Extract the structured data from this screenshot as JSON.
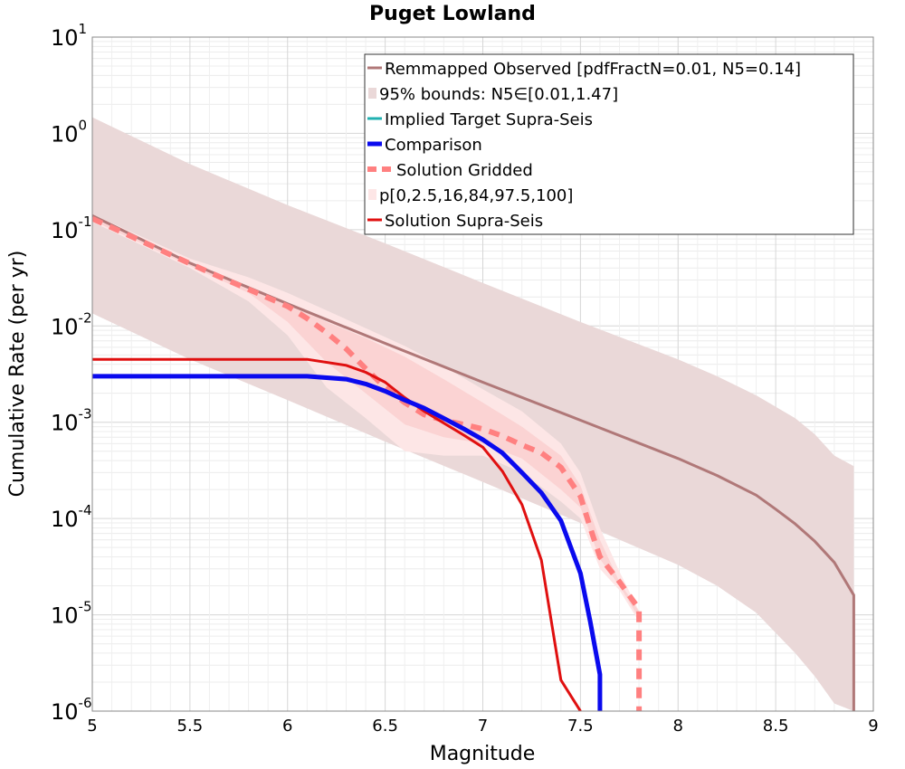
{
  "chart_data": {
    "type": "line",
    "title": "Puget Lowland",
    "xlabel": "Magnitude",
    "ylabel": "Cumulative Rate (per yr)",
    "xlim": [
      5,
      9
    ],
    "ylim": [
      1e-06,
      10
    ],
    "yscale": "log",
    "grid": true,
    "legend_position": "top-right",
    "x_ticks": [
      "5",
      "5.5",
      "6",
      "6.5",
      "7",
      "7.5",
      "8",
      "8.5",
      "9"
    ],
    "y_ticks": [
      {
        "base": "10",
        "exp": "1"
      },
      {
        "base": "10",
        "exp": "0"
      },
      {
        "base": "10",
        "exp": "-1"
      },
      {
        "base": "10",
        "exp": "-2"
      },
      {
        "base": "10",
        "exp": "-3"
      },
      {
        "base": "10",
        "exp": "-4"
      },
      {
        "base": "10",
        "exp": "-5"
      },
      {
        "base": "10",
        "exp": "-6"
      }
    ],
    "legend": [
      {
        "label": "Remmapped Observed [pdfFractN=0.01, N5=0.14]",
        "color": "#b07878",
        "style": "line"
      },
      {
        "label": "95% bounds: N5∈[0.01,1.47]",
        "color": "#ead8d8",
        "style": "patch"
      },
      {
        "label": "Implied Target Supra-Seis",
        "color": "#20b0b0",
        "style": "line"
      },
      {
        "label": "Comparison",
        "color": "#0a0aee",
        "style": "thick"
      },
      {
        "label": "Solution Gridded",
        "color": "#ff8080",
        "style": "dashed"
      },
      {
        "label": "p[0,2.5,16,84,97.5,100]",
        "color": "#fde6e6",
        "style": "patch"
      },
      {
        "label": "Solution Supra-Seis",
        "color": "#e01010",
        "style": "line"
      }
    ],
    "series": [
      {
        "name": "Remmapped Observed [pdfFractN=0.01, N5=0.14]",
        "kind": "line",
        "color": "#b07878",
        "x": [
          5.0,
          5.5,
          6.0,
          6.5,
          7.0,
          7.5,
          8.0,
          8.2,
          8.4,
          8.5,
          8.6,
          8.7,
          8.8,
          8.9,
          8.9
        ],
        "y": [
          0.14,
          0.045,
          0.017,
          0.0066,
          0.0026,
          0.00105,
          0.00042,
          0.00028,
          0.000175,
          0.000125,
          8.8e-05,
          5.8e-05,
          3.5e-05,
          1.6e-05,
          1e-06
        ]
      },
      {
        "name": "95% bounds: N5∈[0.01,1.47]",
        "kind": "band",
        "color": "#ead8d8",
        "x": [
          5.0,
          5.5,
          6.0,
          6.5,
          7.0,
          7.5,
          8.0,
          8.2,
          8.4,
          8.6,
          8.7,
          8.8,
          8.9,
          8.9
        ],
        "upper": [
          1.47,
          0.48,
          0.18,
          0.072,
          0.028,
          0.011,
          0.0045,
          0.003,
          0.0019,
          0.0011,
          0.00075,
          0.00045,
          0.00035,
          1e-06
        ],
        "lower": [
          0.0135,
          0.0045,
          0.0017,
          0.00063,
          0.00024,
          9e-05,
          3.3e-05,
          2e-05,
          1.05e-05,
          4e-06,
          2.3e-06,
          1.2e-06,
          1e-06,
          1e-06
        ]
      },
      {
        "name": "p[0,2.5,16,84,97.5,100]",
        "kind": "band",
        "color": "#fde6e6",
        "x": [
          5.0,
          5.5,
          5.8,
          6.0,
          6.2,
          6.4,
          6.6,
          6.8,
          7.0,
          7.2,
          7.4,
          7.5,
          7.6,
          7.7,
          7.8
        ],
        "upper": [
          0.145,
          0.05,
          0.032,
          0.022,
          0.0145,
          0.0095,
          0.0062,
          0.0038,
          0.0022,
          0.0013,
          0.0006,
          0.0003,
          8e-05,
          2.8e-05,
          1.1e-05
        ],
        "lower": [
          0.12,
          0.04,
          0.018,
          0.008,
          0.0023,
          0.0011,
          0.0005,
          0.00045,
          0.00045,
          0.0003,
          0.00015,
          0.0001,
          3e-05,
          1.8e-05,
          8.5e-06
        ]
      },
      {
        "name": "p-inner",
        "kind": "band",
        "color": "#fbd3d3",
        "x": [
          5.0,
          5.5,
          5.8,
          6.0,
          6.2,
          6.4,
          6.6,
          6.8,
          7.0,
          7.2,
          7.4,
          7.5,
          7.6,
          7.7,
          7.8
        ],
        "upper": [
          0.14,
          0.046,
          0.026,
          0.017,
          0.011,
          0.0075,
          0.0048,
          0.0028,
          0.0016,
          0.0009,
          0.00045,
          0.00022,
          6e-05,
          2.2e-05,
          1.08e-05
        ],
        "lower": [
          0.125,
          0.042,
          0.022,
          0.011,
          0.0042,
          0.002,
          0.00095,
          0.0007,
          0.0006,
          0.00042,
          0.0002,
          0.00013,
          3.8e-05,
          2e-05,
          9.2e-06
        ]
      },
      {
        "name": "Solution Gridded",
        "kind": "dashed",
        "color": "#ff8080",
        "x": [
          5.0,
          5.2,
          5.4,
          5.6,
          5.8,
          6.0,
          6.1,
          6.2,
          6.3,
          6.4,
          6.5,
          6.6,
          6.7,
          6.8,
          6.9,
          7.0,
          7.1,
          7.2,
          7.3,
          7.4,
          7.5,
          7.55,
          7.6,
          7.7,
          7.8,
          7.8
        ],
        "y": [
          0.13,
          0.085,
          0.055,
          0.036,
          0.024,
          0.016,
          0.012,
          0.0085,
          0.0058,
          0.0036,
          0.0023,
          0.0016,
          0.0012,
          0.00105,
          0.00095,
          0.00085,
          0.00072,
          0.00058,
          0.00048,
          0.00034,
          0.00017,
          8e-05,
          4e-05,
          2.2e-05,
          1.15e-05,
          1e-06
        ]
      },
      {
        "name": "Solution Supra-Seis",
        "kind": "line",
        "color": "#e01010",
        "x": [
          5.0,
          6.1,
          6.3,
          6.4,
          6.5,
          6.6,
          6.7,
          6.8,
          6.9,
          7.0,
          7.1,
          7.2,
          7.3,
          7.4,
          7.5,
          7.5
        ],
        "y": [
          0.0045,
          0.0045,
          0.0039,
          0.0033,
          0.0026,
          0.0018,
          0.0013,
          0.00098,
          0.00074,
          0.00055,
          0.00031,
          0.00014,
          3.7e-05,
          2.1e-06,
          1e-06,
          1e-06
        ]
      },
      {
        "name": "Comparison",
        "kind": "thick",
        "color": "#0a0aee",
        "x": [
          5.0,
          6.1,
          6.3,
          6.4,
          6.5,
          6.6,
          6.7,
          6.8,
          6.9,
          7.0,
          7.1,
          7.2,
          7.3,
          7.4,
          7.5,
          7.55,
          7.6,
          7.6
        ],
        "y": [
          0.003,
          0.003,
          0.0028,
          0.0025,
          0.0021,
          0.0017,
          0.0014,
          0.0011,
          0.00086,
          0.00066,
          0.00048,
          0.0003,
          0.000185,
          9.5e-05,
          2.7e-05,
          8.5e-06,
          2.4e-06,
          1e-06
        ]
      }
    ]
  }
}
